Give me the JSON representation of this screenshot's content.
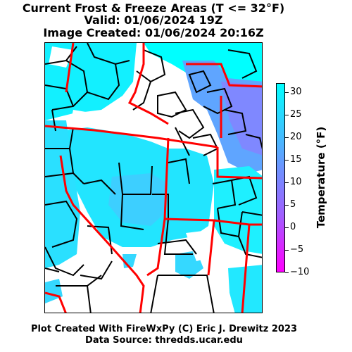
{
  "title": {
    "line1": "Current Frost & Freeze Areas (T <= 32°F)",
    "line2": "Valid: 01/06/2024 19Z",
    "line3": "Image Created: 01/06/2024 20:16Z"
  },
  "colorbar": {
    "label": "Temperature (°F)",
    "ticks": [
      "30",
      "25",
      "20",
      "15",
      "10",
      "5",
      "0",
      "−5",
      "−10"
    ],
    "min": -10,
    "max": 32,
    "colors": {
      "warm": "#00ffff",
      "mid": "#6d93ff",
      "cold": "#ff00ff"
    }
  },
  "map": {
    "state_border_color": "#ff0000",
    "county_border_color": "#000000",
    "fill_colors": [
      "#00ffff",
      "#4fb8ff",
      "#7a8cff"
    ]
  },
  "footer": {
    "line1": "Plot Created With FireWxPy (C) Eric J. Drewitz 2023",
    "line2": "Data Source: thredds.ucar.edu"
  }
}
